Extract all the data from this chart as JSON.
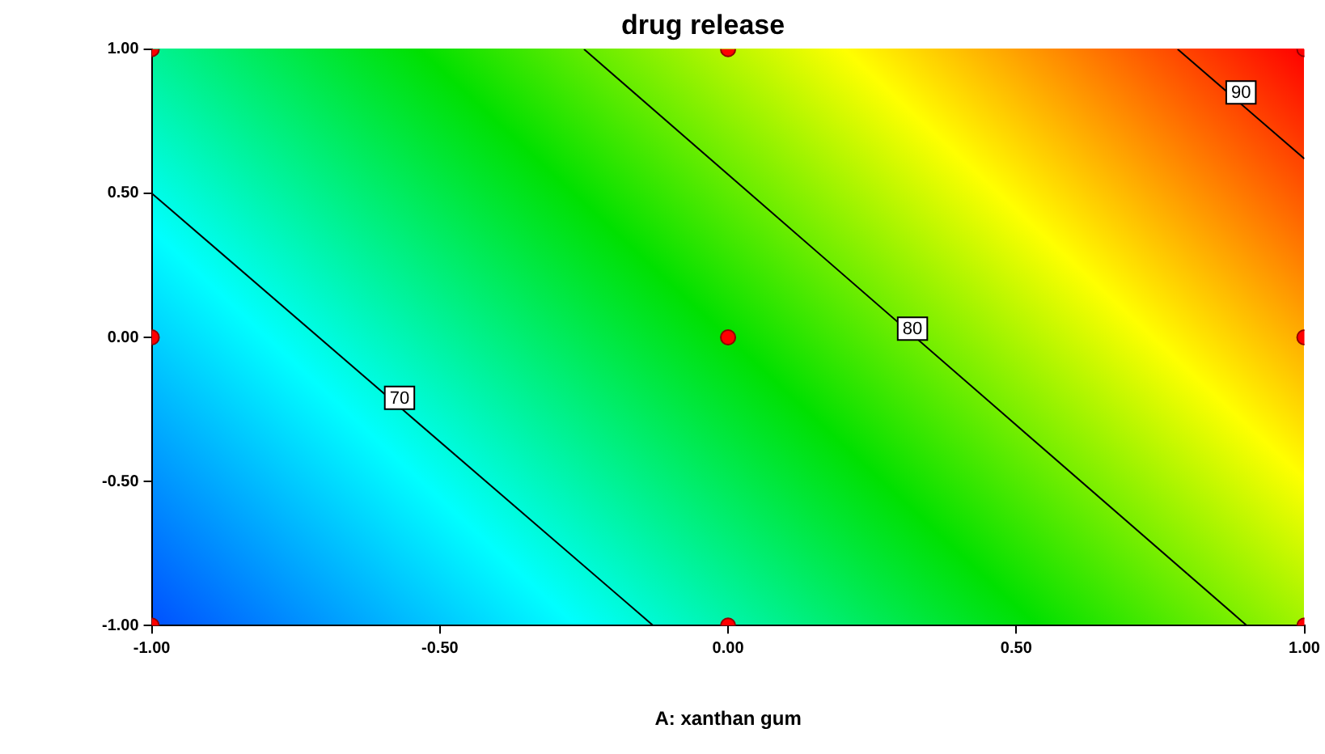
{
  "chart_data": {
    "type": "scatter",
    "title": "drug release",
    "xlabel": "A: xanthan gum",
    "xlim": [
      -1,
      1
    ],
    "ylim": [
      -1,
      1
    ],
    "xticks": [
      {
        "value": -1,
        "label": "-1.00"
      },
      {
        "value": -0.5,
        "label": "-0.50"
      },
      {
        "value": 0,
        "label": "0.00"
      },
      {
        "value": 0.5,
        "label": "0.50"
      },
      {
        "value": 1,
        "label": "1.00"
      }
    ],
    "yticks": [
      {
        "value": -1,
        "label": "-1.00"
      },
      {
        "value": -0.5,
        "label": "-0.50"
      },
      {
        "value": 0,
        "label": "0.00"
      },
      {
        "value": 0.5,
        "label": "0.50"
      },
      {
        "value": 1,
        "label": "1.00"
      }
    ],
    "grid": false,
    "legend": false,
    "series": [
      {
        "marker": "circle",
        "color": "#ff0000",
        "x": [
          -1,
          -1,
          -1,
          0,
          0,
          0,
          1,
          1,
          1
        ],
        "values": [
          -1,
          0,
          1,
          -1,
          0,
          1,
          -1,
          0,
          1
        ]
      },
      {
        "type": "line",
        "color": "#000000",
        "x": [
          -1,
          -0.13
        ],
        "values": [
          0.5,
          -1
        ]
      },
      {
        "type": "line",
        "color": "#000000",
        "x": [
          -0.25,
          0.9
        ],
        "values": [
          1,
          -1
        ]
      },
      {
        "type": "line",
        "color": "#000000",
        "x": [
          0.78,
          1
        ],
        "values": [
          1,
          0.62
        ]
      }
    ],
    "annotations": [
      {
        "text": "70",
        "x": -0.57,
        "y": -0.21
      },
      {
        "text": "80",
        "x": 0.32,
        "y": 0.03
      },
      {
        "text": "90",
        "x": 0.89,
        "y": 0.85
      }
    ]
  }
}
